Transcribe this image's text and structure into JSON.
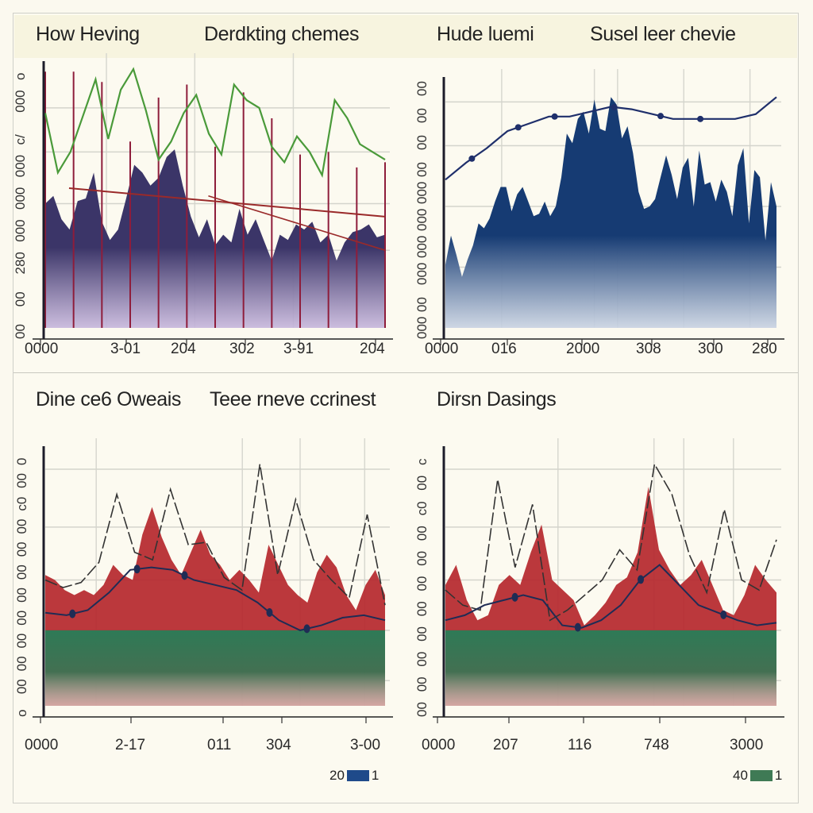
{
  "titles": {
    "top_left_a": "How Heving",
    "top_left_b": "Derdkting chemes",
    "top_right_a": "Hude luemi",
    "top_right_b": "Susel leer chevie",
    "bottom_left_a": "Dine ce6 Oweais",
    "bottom_left_b": "Teee rneve ccrinest",
    "bottom_right_a": "Dirsn Dasings"
  },
  "legends": {
    "bottom_left": {
      "label": "20",
      "suffix": "1",
      "color": "#1f4a8a"
    },
    "bottom_right": {
      "label": "40",
      "suffix": "1",
      "color": "#3f7a55"
    }
  },
  "chart_data": [
    {
      "type": "area",
      "id": "top-left",
      "xticks": [
        "0000",
        "3-01",
        "204",
        "302",
        "3-91",
        "204"
      ],
      "yticks": [
        "o",
        "000",
        "c/",
        "000",
        "000",
        "000",
        "280",
        "00",
        "00"
      ],
      "ylim": [
        0,
        10
      ],
      "colors": {
        "area": "#3b3568",
        "area_fade": "#c6b6dc",
        "spikes": "#8e1d3b",
        "line": "#4a9a3a",
        "trend": "#9a2a2a"
      },
      "area": [
        4.8,
        5.1,
        4.2,
        3.8,
        4.9,
        5.0,
        6.0,
        4.1,
        3.4,
        3.8,
        5.0,
        6.3,
        6.0,
        5.5,
        5.8,
        6.6,
        6.9,
        5.5,
        4.3,
        3.5,
        4.2,
        3.2,
        3.6,
        3.3,
        4.6,
        3.6,
        4.2,
        3.4,
        2.6,
        3.6,
        3.4,
        4.0,
        3.8,
        4.1,
        3.3,
        3.6,
        2.6,
        3.3,
        3.7,
        3.8,
        4.0,
        3.5,
        3.6
      ],
      "line": [
        8.3,
        6.0,
        6.8,
        8.2,
        9.6,
        7.3,
        9.2,
        10.0,
        8.4,
        6.5,
        7.2,
        8.3,
        9.0,
        7.5,
        6.7,
        9.4,
        8.8,
        8.5,
        7.0,
        6.4,
        7.4,
        6.8,
        5.9,
        8.8,
        8.1,
        7.1,
        6.8,
        6.5
      ],
      "spikes": [
        9.9,
        9.9,
        9.5,
        7.2,
        8.9,
        9.4,
        7.0,
        9.1,
        8.1,
        6.7,
        6.8,
        6.2,
        6.4
      ],
      "trend_a": [
        5.4,
        4.3
      ],
      "trend_b": [
        5.1,
        3.0
      ]
    },
    {
      "type": "area",
      "id": "top-right",
      "xticks": [
        "0000",
        "016",
        "2000",
        "308",
        "300",
        "280"
      ],
      "yticks": [
        "00",
        "00",
        "00",
        "00",
        "000",
        "000",
        "000",
        "000",
        "00",
        "000"
      ],
      "ylim": [
        0,
        10
      ],
      "colors": {
        "area": "#163b73",
        "area_fade": "#c9d3e3",
        "line": "#1f2f6b"
      },
      "area": [
        2.6,
        3.8,
        3.0,
        2.1,
        2.8,
        3.4,
        4.3,
        4.1,
        4.5,
        5.2,
        5.8,
        5.8,
        4.8,
        5.5,
        5.8,
        5.2,
        4.6,
        4.7,
        5.2,
        4.6,
        5.0,
        6.2,
        8.0,
        7.6,
        8.6,
        8.9,
        8.0,
        9.4,
        8.2,
        8.1,
        9.5,
        9.2,
        7.8,
        8.3,
        7.2,
        5.6,
        4.9,
        5.0,
        5.3,
        6.2,
        7.1,
        6.3,
        5.3,
        6.6,
        7.0,
        5.0,
        7.3,
        5.9,
        6.0,
        5.2,
        6.1,
        5.6,
        4.6,
        6.7,
        7.4,
        4.3,
        6.5,
        6.2,
        3.6,
        6.0,
        5.0
      ],
      "line": [
        6.1,
        6.8,
        7.4,
        8.1,
        8.4,
        8.7,
        8.7,
        8.9,
        9.1,
        9.0,
        8.8,
        8.6,
        8.6,
        8.6,
        8.6,
        8.8,
        9.5
      ],
      "markers": [
        0.08,
        0.22,
        0.33,
        0.51,
        0.65,
        0.77
      ]
    },
    {
      "type": "area",
      "id": "bottom-left",
      "xticks": [
        "0000",
        "2-17",
        "011",
        "304",
        "3-00"
      ],
      "yticks": [
        "0",
        "00",
        "c0",
        "00",
        "00",
        "00",
        "00",
        "00",
        "00",
        "00",
        "00",
        "o"
      ],
      "ylim": [
        0,
        10
      ],
      "colors": {
        "red": "#b5272c",
        "green": "#2e7a56",
        "green_fade": "#e4efe6",
        "line": "#1f2c55",
        "dash": "#333333"
      },
      "red": [
        5.2,
        5.0,
        4.6,
        4.4,
        4.6,
        4.4,
        4.8,
        5.6,
        5.2,
        5.0,
        6.8,
        7.9,
        6.7,
        5.8,
        5.2,
        6.1,
        7.0,
        6.0,
        5.6,
        5.0,
        5.4,
        5.0,
        4.5,
        6.4,
        5.6,
        4.8,
        4.4,
        4.1,
        5.3,
        6.0,
        5.5,
        4.4,
        3.8,
        4.8,
        5.4,
        4.4
      ],
      "line": [
        3.7,
        3.6,
        3.8,
        4.5,
        5.4,
        5.5,
        5.4,
        5.0,
        4.8,
        4.6,
        4.1,
        3.4,
        3.0,
        3.2,
        3.5,
        3.6,
        3.4
      ],
      "dash": [
        5.0,
        4.7,
        4.9,
        5.7,
        8.4,
        6.1,
        5.8,
        8.6,
        6.4,
        6.5,
        5.1,
        4.6,
        9.6,
        5.2,
        8.2,
        5.8,
        5.0,
        4.3,
        7.6,
        4.0
      ],
      "markers": [
        0.08,
        0.27,
        0.41,
        0.66,
        0.77
      ]
    },
    {
      "type": "area",
      "id": "bottom-right",
      "xticks": [
        "0000",
        "207",
        "116",
        "748",
        "3000"
      ],
      "yticks": [
        "c",
        "00",
        "c0",
        "00",
        "00",
        "00",
        "00",
        "00",
        "00",
        "00",
        "00"
      ],
      "ylim": [
        0,
        10
      ],
      "colors": {
        "red": "#b5272c",
        "green": "#2e7a56",
        "green_fade": "#e4efe6",
        "line": "#1f2c55",
        "dash": "#333333"
      },
      "red": [
        4.8,
        5.6,
        4.2,
        3.4,
        3.6,
        4.8,
        5.2,
        4.8,
        6.1,
        7.2,
        5.0,
        4.6,
        4.2,
        3.2,
        3.6,
        4.1,
        4.8,
        5.1,
        6.1,
        8.7,
        6.2,
        5.4,
        4.8,
        5.2,
        5.8,
        4.8,
        3.8,
        3.6,
        4.4,
        5.6,
        5.0,
        4.5
      ],
      "line": [
        3.4,
        3.6,
        4.0,
        4.2,
        4.4,
        4.2,
        3.2,
        3.1,
        3.4,
        4.0,
        5.0,
        5.6,
        4.8,
        4.0,
        3.7,
        3.4,
        3.2,
        3.3
      ],
      "dash": [
        4.6,
        4.0,
        3.8,
        9.0,
        5.5,
        8.0,
        3.4,
        3.8,
        4.4,
        5.0,
        6.2,
        5.4,
        9.6,
        8.4,
        6.0,
        4.5,
        7.8,
        5.0,
        4.6,
        6.6
      ],
      "markers": [
        0.21,
        0.4,
        0.59,
        0.84
      ]
    }
  ]
}
